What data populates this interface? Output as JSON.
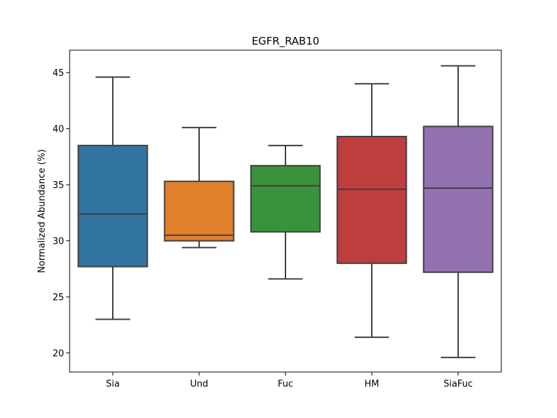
{
  "chart_data": {
    "type": "box",
    "title": "EGFR_RAB10",
    "xlabel": "",
    "ylabel": "Normalized Abundance (%)",
    "ylim": [
      18.3,
      47.0
    ],
    "yticks": [
      20,
      25,
      30,
      35,
      40,
      45
    ],
    "grid": false,
    "legend": "none",
    "categories": [
      "Sia",
      "Und",
      "Fuc",
      "HM",
      "SiaFuc"
    ],
    "boxes": [
      {
        "category": "Sia",
        "whisker_low": 23.0,
        "q1": 27.7,
        "median": 32.4,
        "q3": 38.5,
        "whisker_high": 44.6,
        "color": "#3274a1"
      },
      {
        "category": "Und",
        "whisker_low": 29.4,
        "q1": 30.0,
        "median": 30.5,
        "q3": 35.3,
        "whisker_high": 40.1,
        "color": "#e1812c"
      },
      {
        "category": "Fuc",
        "whisker_low": 26.6,
        "q1": 30.8,
        "median": 34.9,
        "q3": 36.7,
        "whisker_high": 38.5,
        "color": "#3a923a"
      },
      {
        "category": "HM",
        "whisker_low": 21.4,
        "q1": 28.0,
        "median": 34.6,
        "q3": 39.3,
        "whisker_high": 44.0,
        "color": "#c03d3e"
      },
      {
        "category": "SiaFuc",
        "whisker_low": 19.6,
        "q1": 27.2,
        "median": 34.7,
        "q3": 40.2,
        "whisker_high": 45.6,
        "color": "#9372b2"
      }
    ]
  }
}
